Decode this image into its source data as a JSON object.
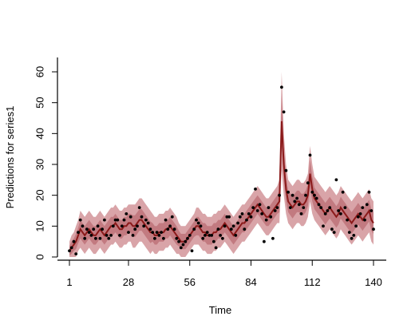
{
  "chart_data": {
    "type": "line",
    "xlabel": "Time",
    "ylabel": "Predictions for series1",
    "xlim": [
      1,
      142
    ],
    "ylim": [
      0,
      68
    ],
    "xticks": [
      1,
      28,
      56,
      84,
      112,
      140
    ],
    "yticks": [
      0,
      10,
      20,
      30,
      40,
      50,
      60
    ],
    "grid": false,
    "legend": "none",
    "colors": {
      "band_outer": "#d9a4a8",
      "band_inner": "#c27a80",
      "line": "#8b1a1a",
      "points": "#000000"
    },
    "x": [
      1,
      2,
      3,
      4,
      5,
      6,
      7,
      8,
      9,
      10,
      11,
      12,
      13,
      14,
      15,
      16,
      17,
      18,
      19,
      20,
      21,
      22,
      23,
      24,
      25,
      26,
      27,
      28,
      29,
      30,
      31,
      32,
      33,
      34,
      35,
      36,
      37,
      38,
      39,
      40,
      41,
      42,
      43,
      44,
      45,
      46,
      47,
      48,
      49,
      50,
      51,
      52,
      53,
      54,
      55,
      56,
      57,
      58,
      59,
      60,
      61,
      62,
      63,
      64,
      65,
      66,
      67,
      68,
      69,
      70,
      71,
      72,
      73,
      74,
      75,
      76,
      77,
      78,
      79,
      80,
      81,
      82,
      83,
      84,
      85,
      86,
      87,
      88,
      89,
      90,
      91,
      92,
      93,
      94,
      95,
      96,
      97,
      98,
      99,
      100,
      101,
      102,
      103,
      104,
      105,
      106,
      107,
      108,
      109,
      110,
      111,
      112,
      113,
      114,
      115,
      116,
      117,
      118,
      119,
      120,
      121,
      122,
      123,
      124,
      125,
      126,
      127,
      128,
      129,
      130,
      131,
      132,
      133,
      134,
      135,
      136,
      137,
      138,
      139,
      140
    ],
    "series": [
      {
        "role": "median",
        "values": [
          2,
          3,
          4,
          5,
          7,
          9,
          8,
          7,
          8,
          9,
          8,
          7,
          7,
          8,
          9,
          8,
          7,
          8,
          9,
          10,
          10,
          11,
          10,
          9,
          9,
          10,
          10,
          11,
          11,
          10,
          10,
          11,
          12,
          12,
          11,
          10,
          9,
          8,
          8,
          7,
          7,
          8,
          8,
          8,
          9,
          9,
          10,
          9,
          8,
          7,
          6,
          5,
          5,
          5,
          6,
          7,
          8,
          9,
          10,
          10,
          9,
          8,
          8,
          7,
          7,
          7,
          8,
          8,
          9,
          9,
          10,
          11,
          10,
          9,
          8,
          7,
          8,
          9,
          10,
          11,
          11,
          12,
          13,
          14,
          15,
          16,
          17,
          16,
          15,
          14,
          13,
          13,
          14,
          15,
          16,
          17,
          18,
          44,
          30,
          22,
          18,
          17,
          16,
          17,
          18,
          18,
          17,
          17,
          18,
          20,
          27,
          22,
          19,
          18,
          17,
          16,
          15,
          14,
          15,
          16,
          15,
          14,
          13,
          14,
          16,
          15,
          14,
          13,
          12,
          11,
          12,
          13,
          14,
          13,
          12,
          13,
          14,
          15,
          12,
          11
        ]
      },
      {
        "role": "observed",
        "values": [
          2,
          3,
          5,
          1,
          8,
          12,
          10,
          6,
          9,
          8,
          7,
          9,
          6,
          10,
          6,
          9,
          12,
          7,
          6,
          7,
          10,
          12,
          12,
          7,
          10,
          12,
          14,
          8,
          13,
          7,
          9,
          10,
          16,
          13,
          10,
          12,
          11,
          9,
          8,
          6,
          8,
          7,
          8,
          6,
          12,
          9,
          10,
          13,
          9,
          6,
          5,
          3,
          4,
          5,
          6,
          7,
          2,
          9,
          12,
          11,
          10,
          6,
          7,
          8,
          7,
          7,
          5,
          3,
          9,
          7,
          6,
          10,
          13,
          13,
          9,
          10,
          7,
          11,
          13,
          14,
          9,
          12,
          14,
          13,
          16,
          22,
          15,
          17,
          14,
          5,
          12,
          16,
          13,
          6,
          15,
          16,
          20,
          55,
          47,
          28,
          21,
          16,
          20,
          18,
          19,
          17,
          14,
          16,
          20,
          24,
          33,
          21,
          20,
          19,
          17,
          16,
          10,
          14,
          15,
          16,
          9,
          8,
          25,
          15,
          14,
          21,
          16,
          12,
          8,
          6,
          7,
          10,
          13,
          14,
          16,
          12,
          17,
          21,
          15,
          9
        ]
      }
    ],
    "band_outer_halfwidth": [
      3,
      4,
      4,
      5,
      5,
      6,
      6,
      6,
      6,
      6,
      6,
      6,
      6,
      6,
      6,
      6,
      6,
      6,
      6,
      6,
      6,
      6,
      6,
      6,
      6,
      6,
      6,
      6,
      6,
      7,
      7,
      7,
      7,
      7,
      7,
      7,
      7,
      7,
      6,
      6,
      6,
      6,
      6,
      6,
      6,
      6,
      6,
      6,
      6,
      6,
      5,
      5,
      5,
      5,
      5,
      5,
      5,
      5,
      6,
      6,
      6,
      6,
      6,
      6,
      6,
      6,
      6,
      6,
      6,
      6,
      6,
      6,
      6,
      6,
      6,
      6,
      6,
      6,
      6,
      6,
      6,
      6,
      6,
      6,
      6,
      6,
      6,
      6,
      6,
      6,
      6,
      6,
      6,
      6,
      6,
      6,
      7,
      16,
      10,
      8,
      7,
      7,
      7,
      7,
      7,
      7,
      7,
      7,
      7,
      7,
      9,
      8,
      7,
      7,
      7,
      7,
      7,
      7,
      7,
      7,
      7,
      7,
      7,
      7,
      7,
      7,
      7,
      7,
      7,
      7,
      7,
      7,
      7,
      7,
      7,
      7,
      7,
      7,
      7,
      7
    ],
    "band_inner_halfwidth": [
      1.5,
      2,
      2,
      2.5,
      2.5,
      3,
      3,
      3,
      3,
      3,
      3,
      3,
      3,
      3,
      3,
      3,
      3,
      3,
      3,
      3,
      3,
      3,
      3,
      3,
      3,
      3,
      3,
      3,
      3,
      3.5,
      3.5,
      3.5,
      3.5,
      3.5,
      3.5,
      3.5,
      3.5,
      3.5,
      3,
      3,
      3,
      3,
      3,
      3,
      3,
      3,
      3,
      3,
      3,
      3,
      2.5,
      2.5,
      2.5,
      2.5,
      2.5,
      2.5,
      2.5,
      2.5,
      3,
      3,
      3,
      3,
      3,
      3,
      3,
      3,
      3,
      3,
      3,
      3,
      3,
      3,
      3,
      3,
      3,
      3,
      3,
      3,
      3,
      3,
      3,
      3,
      3,
      3,
      3,
      3,
      3,
      3,
      3,
      3,
      3,
      3,
      3,
      3,
      3,
      3,
      3.5,
      8,
      5,
      4,
      3.5,
      3.5,
      3.5,
      3.5,
      3.5,
      3.5,
      3.5,
      3.5,
      3.5,
      3.5,
      4.5,
      4,
      3.5,
      3.5,
      3.5,
      3.5,
      3.5,
      3.5,
      3.5,
      3.5,
      3.5,
      3.5,
      3.5,
      3.5,
      3.5,
      3.5,
      3.5,
      3.5,
      3.5,
      3.5,
      3.5,
      3.5,
      3.5,
      3.5,
      3.5,
      3.5,
      3.5,
      3.5,
      3.5,
      3.5
    ]
  }
}
